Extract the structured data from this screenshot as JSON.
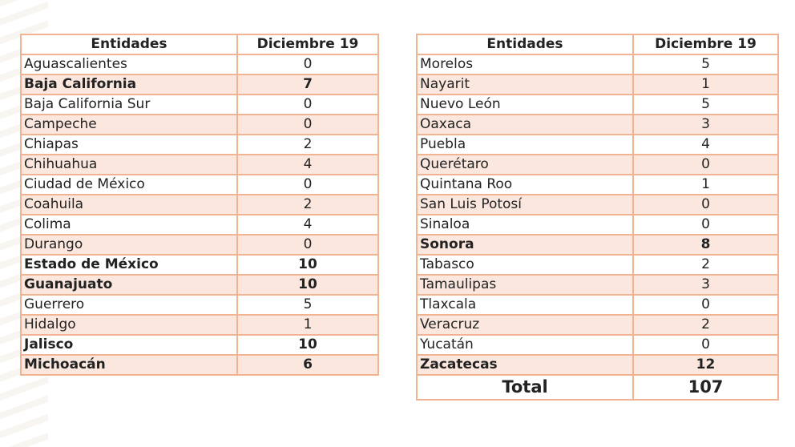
{
  "headers": {
    "entity": "Entidades",
    "date": "Diciembre 19"
  },
  "left_rows": [
    {
      "name": "Aguascalientes",
      "value": "0",
      "bold": false
    },
    {
      "name": "Baja California",
      "value": "7",
      "bold": true
    },
    {
      "name": "Baja California Sur",
      "value": "0",
      "bold": false
    },
    {
      "name": "Campeche",
      "value": "0",
      "bold": false
    },
    {
      "name": "Chiapas",
      "value": "2",
      "bold": false
    },
    {
      "name": "Chihuahua",
      "value": "4",
      "bold": false
    },
    {
      "name": "Ciudad de México",
      "value": "0",
      "bold": false
    },
    {
      "name": "Coahuila",
      "value": "2",
      "bold": false
    },
    {
      "name": "Colima",
      "value": "4",
      "bold": false
    },
    {
      "name": "Durango",
      "value": "0",
      "bold": false
    },
    {
      "name": "Estado de México",
      "value": "10",
      "bold": true
    },
    {
      "name": "Guanajuato",
      "value": "10",
      "bold": true
    },
    {
      "name": "Guerrero",
      "value": "5",
      "bold": false
    },
    {
      "name": "Hidalgo",
      "value": "1",
      "bold": false
    },
    {
      "name": "Jalisco",
      "value": "10",
      "bold": true
    },
    {
      "name": "Michoacán",
      "value": "6",
      "bold": true
    }
  ],
  "right_rows": [
    {
      "name": "Morelos",
      "value": "5",
      "bold": false
    },
    {
      "name": "Nayarit",
      "value": "1",
      "bold": false
    },
    {
      "name": "Nuevo León",
      "value": "5",
      "bold": false
    },
    {
      "name": "Oaxaca",
      "value": "3",
      "bold": false
    },
    {
      "name": "Puebla",
      "value": "4",
      "bold": false
    },
    {
      "name": "Querétaro",
      "value": "0",
      "bold": false
    },
    {
      "name": "Quintana Roo",
      "value": "1",
      "bold": false
    },
    {
      "name": "San Luis Potosí",
      "value": "0",
      "bold": false
    },
    {
      "name": "Sinaloa",
      "value": "0",
      "bold": false
    },
    {
      "name": "Sonora",
      "value": "8",
      "bold": true
    },
    {
      "name": "Tabasco",
      "value": "2",
      "bold": false
    },
    {
      "name": "Tamaulipas",
      "value": "3",
      "bold": false
    },
    {
      "name": "Tlaxcala",
      "value": "0",
      "bold": false
    },
    {
      "name": "Veracruz",
      "value": "2",
      "bold": false
    },
    {
      "name": "Yucatán",
      "value": "0",
      "bold": false
    },
    {
      "name": "Zacatecas",
      "value": "12",
      "bold": true
    }
  ],
  "total": {
    "label": "Total",
    "value": "107"
  },
  "colors": {
    "border": "#f0b493",
    "row_shade": "#fbe7de"
  }
}
